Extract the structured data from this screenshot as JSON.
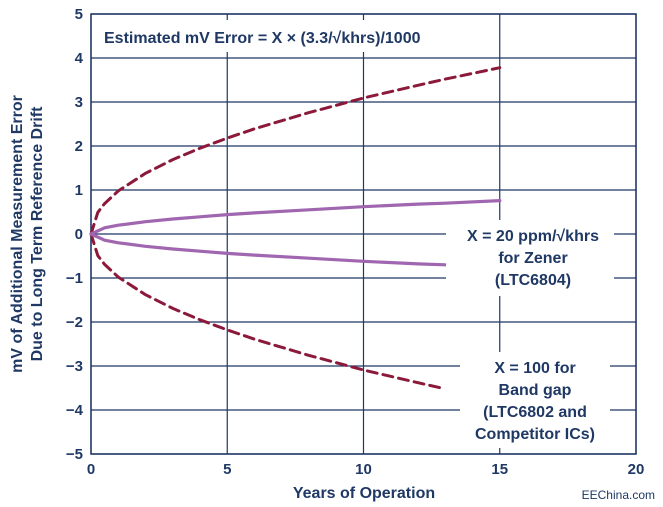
{
  "chart_data": {
    "type": "line",
    "title": "",
    "xlabel": "Years of Operation",
    "ylabel_line1": "mV of Additional Measurement Error",
    "ylabel_line2": "Due to Long Term Reference Drift",
    "xlim": [
      0,
      20
    ],
    "ylim": [
      -5,
      5
    ],
    "x_ticks": [
      "0",
      "5",
      "10",
      "15",
      "20"
    ],
    "y_ticks": [
      "5",
      "4",
      "3",
      "2",
      "1",
      "0",
      "−1",
      "−2",
      "−3",
      "−4",
      "−5"
    ],
    "grid": true,
    "colors": {
      "bandgap": "#8b1a3a",
      "zener": "#a066b0",
      "grid": "#1f3864",
      "text": "#1f3864"
    },
    "formula_text": "Estimated mV Error = X × (3.3/√khrs)/1000",
    "annotations": {
      "zener_line1": "X = 20 ppm/√khrs",
      "zener_line2": "for Zener",
      "zener_line3": "(LTC6804)",
      "bandgap_line1": "X = 100 for",
      "bandgap_line2": "Band gap",
      "bandgap_line3": "(LTC6802 and",
      "bandgap_line4": "Competitor ICs)"
    },
    "series": [
      {
        "key": "bandgap_pos",
        "style": "dashed",
        "x": [
          0,
          0.25,
          0.5,
          1,
          2,
          3,
          4,
          5,
          6,
          8,
          10,
          12,
          13,
          15
        ],
        "y": [
          0,
          0.49,
          0.69,
          0.98,
          1.38,
          1.69,
          1.95,
          2.18,
          2.39,
          2.76,
          3.09,
          3.38,
          3.52,
          3.78
        ]
      },
      {
        "key": "bandgap_neg",
        "style": "dashed",
        "x": [
          0,
          0.25,
          0.5,
          1,
          2,
          3,
          4,
          5,
          6,
          8,
          10,
          12,
          13
        ],
        "y": [
          0,
          -0.49,
          -0.69,
          -0.98,
          -1.38,
          -1.69,
          -1.95,
          -2.18,
          -2.39,
          -2.76,
          -3.09,
          -3.38,
          -3.52
        ]
      },
      {
        "key": "zener_pos",
        "style": "solid",
        "x": [
          0,
          0.5,
          1,
          2,
          3,
          4,
          5,
          6,
          8,
          10,
          12,
          13,
          15
        ],
        "y": [
          0,
          0.14,
          0.2,
          0.28,
          0.34,
          0.39,
          0.44,
          0.48,
          0.55,
          0.62,
          0.68,
          0.7,
          0.76
        ]
      },
      {
        "key": "zener_neg",
        "style": "solid",
        "x": [
          0,
          0.5,
          1,
          2,
          3,
          4,
          5,
          6,
          8,
          10,
          12,
          13
        ],
        "y": [
          0,
          -0.14,
          -0.2,
          -0.28,
          -0.34,
          -0.39,
          -0.44,
          -0.48,
          -0.55,
          -0.62,
          -0.68,
          -0.7
        ]
      }
    ]
  },
  "watermark": "EEChina.com"
}
